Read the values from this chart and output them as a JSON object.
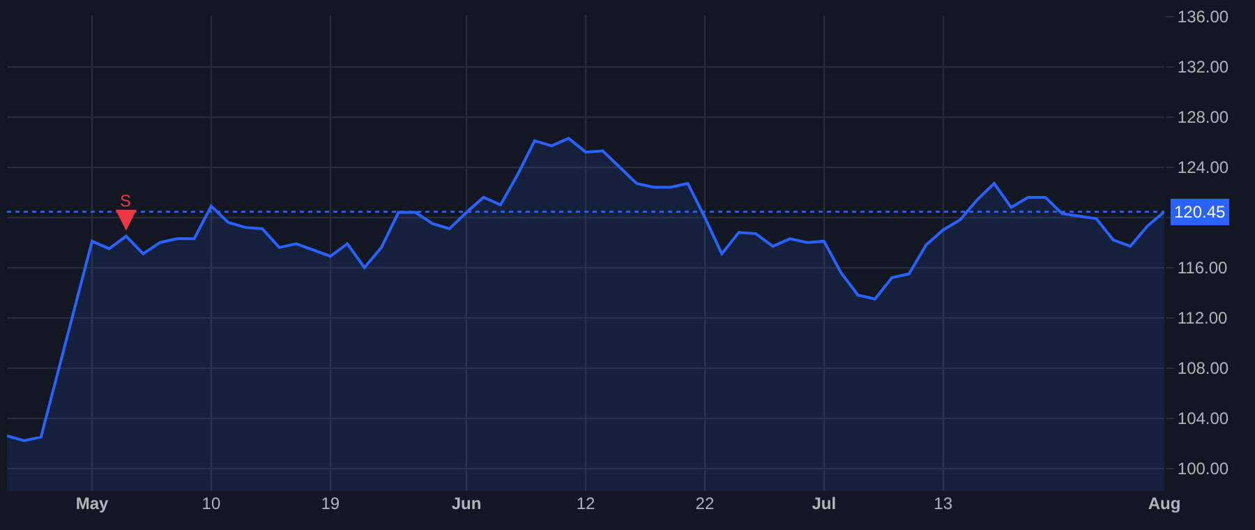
{
  "chart_data": {
    "type": "area",
    "categories": [
      null,
      null,
      null,
      null,
      null,
      "May",
      null,
      null,
      null,
      null,
      null,
      null,
      "10",
      null,
      null,
      null,
      null,
      null,
      null,
      "19",
      null,
      null,
      null,
      null,
      null,
      null,
      null,
      "Jun",
      null,
      null,
      null,
      null,
      null,
      null,
      "12",
      null,
      null,
      null,
      null,
      null,
      null,
      "22",
      null,
      null,
      null,
      null,
      null,
      null,
      "Jul",
      null,
      null,
      null,
      null,
      null,
      null,
      "13",
      null,
      null,
      null,
      null,
      null,
      null,
      null,
      null,
      null,
      null,
      null,
      null,
      "Aug"
    ],
    "series": [
      {
        "color": "#2962ff",
        "values": [
          102.6,
          102.2,
          102.5,
          107.7,
          112.9,
          118.1,
          117.5,
          118.5,
          117.1,
          118.0,
          118.3,
          118.3,
          120.9,
          119.6,
          119.2,
          119.1,
          117.6,
          117.9,
          117.4,
          116.9,
          117.9,
          116.0,
          117.6,
          120.4,
          120.4,
          119.5,
          119.1,
          120.4,
          121.6,
          121.0,
          123.4,
          126.1,
          125.7,
          126.3,
          125.2,
          125.3,
          124.0,
          122.7,
          122.4,
          122.4,
          122.7,
          120.0,
          117.1,
          118.8,
          118.7,
          117.7,
          118.3,
          118.0,
          118.1,
          115.6,
          113.8,
          113.5,
          115.2,
          115.5,
          117.8,
          119.0,
          119.8,
          121.4,
          122.7,
          120.8,
          121.6,
          121.6,
          120.3,
          120.1,
          119.9,
          118.2,
          117.7,
          119.3,
          120.45
        ]
      }
    ],
    "ylim": [
      98.2,
      136.1
    ],
    "yticks": [
      {
        "value": 100,
        "label": "100.00"
      },
      {
        "value": 104,
        "label": "104.00"
      },
      {
        "value": 108,
        "label": "108.00"
      },
      {
        "value": 112,
        "label": "112.00"
      },
      {
        "value": 116,
        "label": "116.00"
      },
      {
        "value": 120,
        "label": null
      },
      {
        "value": 124,
        "label": "124.00"
      },
      {
        "value": 128,
        "label": "128.00"
      },
      {
        "value": 132,
        "label": "132.00"
      },
      {
        "value": 136,
        "label": "136.00"
      }
    ],
    "ref_lines": [
      {
        "axis": "y",
        "value": 120.45,
        "label": "120.45",
        "color": "#2962ff",
        "line_style": "dotted"
      }
    ],
    "annotations": [
      {
        "text": "S",
        "y": 118.5
      }
    ],
    "grid": true
  }
}
